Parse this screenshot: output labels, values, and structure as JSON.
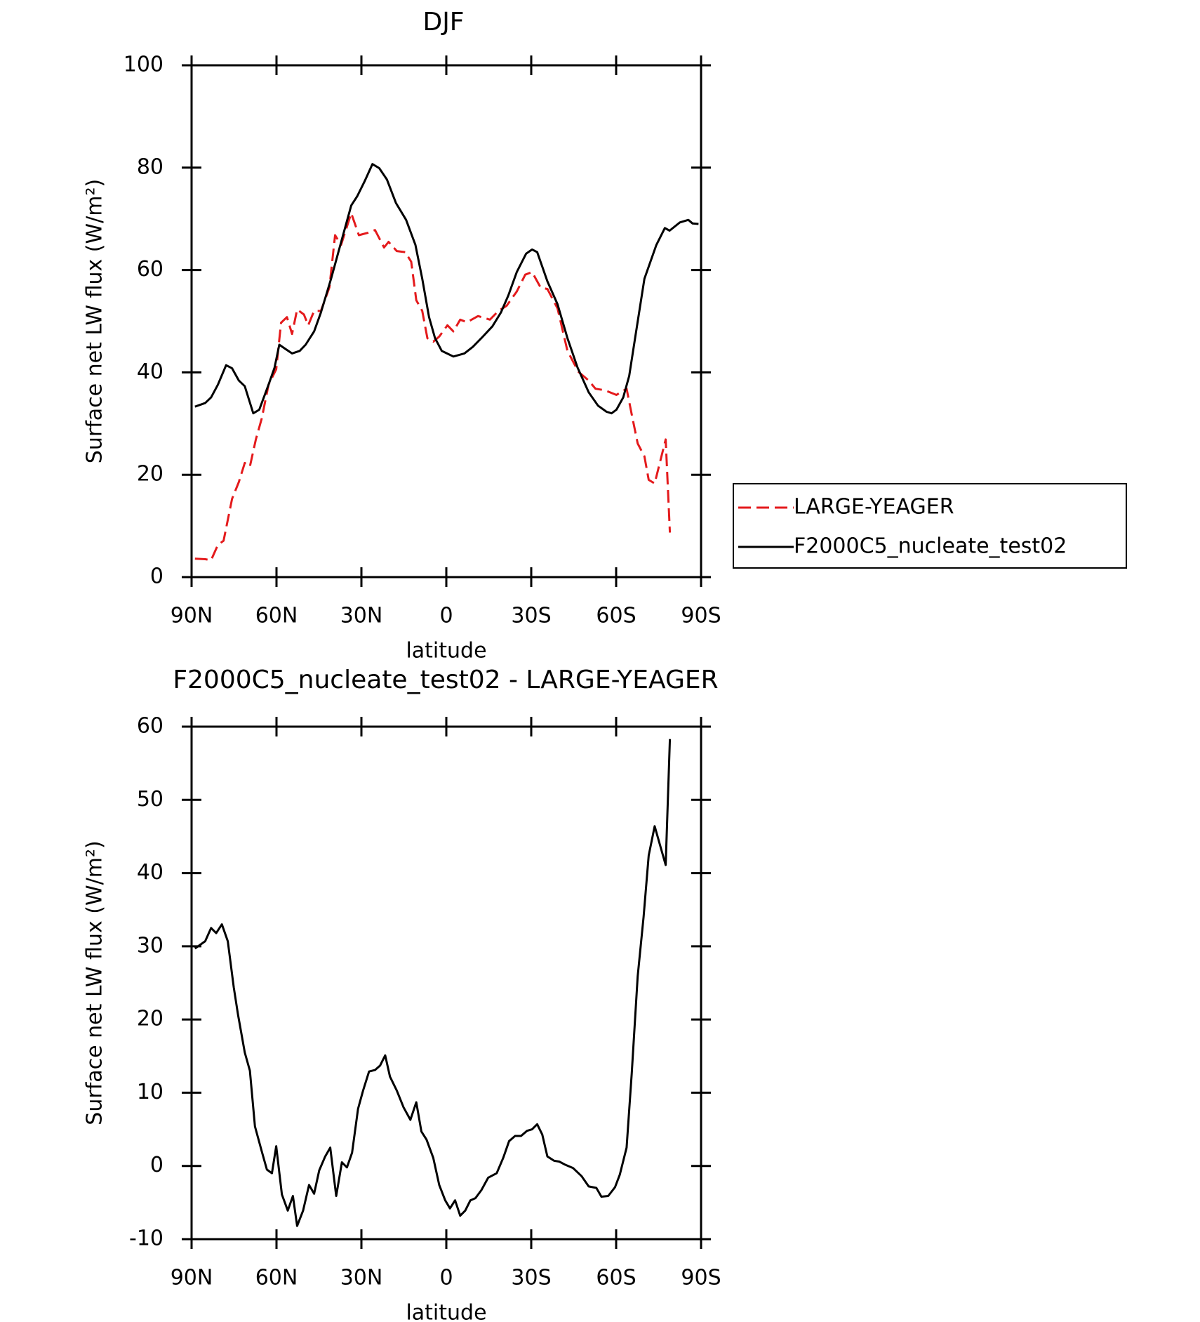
{
  "chart_data": [
    {
      "type": "line",
      "title": "DJF",
      "xlabel": "latitude",
      "ylabel": "Surface net LW flux (W/m²)",
      "xlim": [
        90,
        -90
      ],
      "xticks": [
        {
          "value": 90,
          "label": "90N"
        },
        {
          "value": 60,
          "label": "60N"
        },
        {
          "value": 30,
          "label": "30N"
        },
        0,
        {
          "value": -30,
          "label": "30S"
        },
        {
          "value": -60,
          "label": "60S"
        },
        {
          "value": -90,
          "label": "90S"
        }
      ],
      "ylim": [
        0,
        100
      ],
      "yticks": [
        0,
        20,
        40,
        60,
        80,
        100
      ],
      "legend": "right",
      "series": [
        {
          "name": "LARGE-YEAGER",
          "color": "#e41a1c",
          "line_style": "dashed",
          "x": [
            88.8,
            85.2,
            83.1,
            80.7,
            78.7,
            75.7,
            73.3,
            71.2,
            69.4,
            67.3,
            65.2,
            62.8,
            60.1,
            58.4,
            56.3,
            54.5,
            52.7,
            50.3,
            48.8,
            46.7,
            44.3,
            41.3,
            39.3,
            37.2,
            33.6,
            30.9,
            27.6,
            25.2,
            22,
            20.4,
            17.5,
            14.5,
            12.4,
            10.6,
            8.5,
            6.7,
            4.6,
            2.5,
            -0.4,
            -2.5,
            -4.9,
            -7.3,
            -11.2,
            -15.4,
            -18.4,
            -21.3,
            -24.9,
            -27.9,
            -30.3,
            -33.3,
            -35.7,
            -39.3,
            -42.8,
            -46.7,
            -50.3,
            -52.7,
            -56,
            -60.1,
            -63.7,
            -65.5,
            -67.6,
            -70,
            -71.5,
            -73.6,
            -77.5,
            -79
          ],
          "values": [
            3.6,
            3.5,
            3.3,
            6.3,
            7.1,
            15.3,
            18.6,
            22.3,
            21.6,
            26.9,
            31,
            37.6,
            40.6,
            49.7,
            50.8,
            47.5,
            52.3,
            51.3,
            49.2,
            52,
            52,
            56.6,
            66.8,
            64.9,
            71.1,
            66.8,
            67.3,
            67.8,
            64.4,
            65.5,
            63.7,
            63.5,
            61.6,
            54.1,
            52,
            46.7,
            46,
            47,
            49.2,
            48,
            50.3,
            49.8,
            51,
            50.3,
            52,
            53,
            55.8,
            59.1,
            59.6,
            56.6,
            56.3,
            52.5,
            44.2,
            40.1,
            38.4,
            36.8,
            36.5,
            35.6,
            36.8,
            31.8,
            26.1,
            23.6,
            19,
            18.3,
            26.9,
            8.7
          ]
        },
        {
          "name": "F2000C5_nucleate_test02",
          "color": "#000000",
          "line_style": "solid",
          "x": [
            88.8,
            85.2,
            83.1,
            80.7,
            77.8,
            75.7,
            73.3,
            71.2,
            68.2,
            66.1,
            62.8,
            60.7,
            59,
            56.9,
            54.5,
            51.8,
            49.7,
            46.7,
            44.3,
            40.7,
            36.9,
            33.6,
            31.5,
            28.8,
            26.1,
            23.7,
            21,
            17.8,
            14.2,
            10.9,
            8.5,
            6.1,
            4,
            1.6,
            -2.5,
            -6.4,
            -9.4,
            -12.4,
            -16.3,
            -19.3,
            -21.9,
            -24.9,
            -28.2,
            -30.3,
            -32.1,
            -35.7,
            -39.3,
            -42.8,
            -46.4,
            -50.3,
            -53.6,
            -56.6,
            -58.4,
            -60.1,
            -62.5,
            -64.6,
            -66.7,
            -70,
            -74.2,
            -77.2,
            -78.9,
            -82.5,
            -85.5,
            -87,
            -89.1
          ],
          "values": [
            33.3,
            34,
            35.1,
            37.6,
            41.4,
            40.8,
            38.4,
            37.3,
            32,
            32.7,
            37.6,
            40.9,
            45.4,
            44.6,
            43.7,
            44.2,
            45.4,
            48,
            51.7,
            58.3,
            66,
            72.6,
            74.4,
            77.4,
            80.7,
            79.9,
            77.7,
            73.1,
            69.8,
            64.9,
            58.3,
            50.8,
            46.7,
            44.2,
            43.1,
            43.7,
            45,
            46.7,
            49,
            51.7,
            55,
            59.6,
            63.2,
            64,
            63.5,
            57.8,
            53.3,
            46.7,
            40.9,
            36.1,
            33.5,
            32.3,
            32,
            32.7,
            35.1,
            39.3,
            46.7,
            58.3,
            64.9,
            68.2,
            67.7,
            69.3,
            69.8,
            69.1,
            69
          ]
        }
      ]
    },
    {
      "type": "line",
      "title": "F2000C5_nucleate_test02 - LARGE-YEAGER",
      "xlabel": "latitude",
      "ylabel": "Surface net LW flux (W/m²)",
      "xlim": [
        90,
        -90
      ],
      "xticks": [
        {
          "value": 90,
          "label": "90N"
        },
        {
          "value": 60,
          "label": "60N"
        },
        {
          "value": 30,
          "label": "30N"
        },
        0,
        {
          "value": -30,
          "label": "30S"
        },
        {
          "value": -60,
          "label": "60S"
        },
        {
          "value": -90,
          "label": "90S"
        }
      ],
      "ylim": [
        -10,
        60
      ],
      "yticks": [
        -10,
        0,
        10,
        20,
        30,
        40,
        50,
        60
      ],
      "series": [
        {
          "color": "#000000",
          "line_style": "solid",
          "x": [
            88.8,
            85.2,
            83.1,
            81.3,
            79.3,
            77.2,
            75.1,
            73.6,
            71.2,
            69.4,
            67.6,
            65.2,
            63.4,
            61.6,
            60.1,
            58.1,
            56,
            54.2,
            52.7,
            50.6,
            48.5,
            46.7,
            44.9,
            42.8,
            41,
            38.9,
            36.9,
            35.1,
            33.3,
            31.2,
            29.4,
            27.3,
            25.2,
            23.4,
            21.6,
            19.9,
            17.5,
            15.1,
            12.7,
            10.6,
            8.8,
            7,
            4.6,
            2.5,
            0.4,
            -1.3,
            -3.1,
            -4.9,
            -6.7,
            -8.5,
            -10.3,
            -12.4,
            -14.8,
            -17.8,
            -20.1,
            -22.2,
            -24.3,
            -26.4,
            -28.5,
            -30.3,
            -32.1,
            -33.9,
            -35.7,
            -38.1,
            -39.9,
            -41.8,
            -44.8,
            -47.8,
            -50.3,
            -53,
            -54.8,
            -57.2,
            -59.6,
            -61.3,
            -63.7,
            -65.5,
            -67.6,
            -69.7,
            -71.5,
            -73.6,
            -77.5,
            -79
          ],
          "values": [
            29.7,
            30.7,
            32.5,
            31.8,
            33,
            30.7,
            24.4,
            20.7,
            15.5,
            13,
            5.4,
            2,
            -0.5,
            -1,
            2.7,
            -3.9,
            -6.1,
            -4.1,
            -8.2,
            -6.1,
            -2.6,
            -3.8,
            -0.6,
            1.3,
            2.5,
            -4.1,
            0.5,
            -0.2,
            1.8,
            7.8,
            10.3,
            12.9,
            13.1,
            13.7,
            15.1,
            12.2,
            10.3,
            8,
            6.3,
            8.7,
            4.7,
            3.6,
            1.1,
            -2.6,
            -4.7,
            -5.8,
            -4.7,
            -6.8,
            -6.1,
            -4.7,
            -4.4,
            -3.3,
            -1.6,
            -1,
            1.1,
            3.4,
            4.1,
            4.1,
            4.8,
            5,
            5.7,
            4.3,
            1.3,
            0.7,
            0.6,
            0.2,
            -0.3,
            -1.4,
            -2.8,
            -3,
            -4.2,
            -4.1,
            -2.9,
            -1.2,
            2.5,
            12.6,
            25.9,
            34,
            42.4,
            46.4,
            41.1,
            58.3
          ]
        }
      ]
    }
  ]
}
